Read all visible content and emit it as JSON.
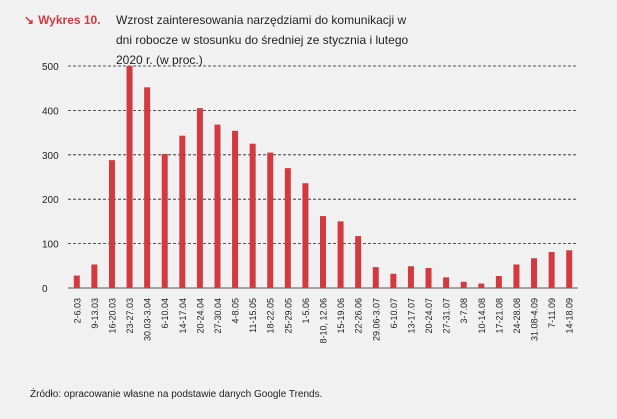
{
  "header": {
    "label": "Wykres 10.",
    "arrow": "↘",
    "title": "Wzrost zainteresowania narzędziami do komunikacji w dni robocze w stosunku do średniej ze stycznia i lutego 2020 r. (w proc.)"
  },
  "source": "Źródło: opracowanie własne na podstawie danych Google Trends.",
  "colors": {
    "bar": "#d33a3f",
    "grid": "#222222",
    "background": "#f1f1f1"
  },
  "chart_data": {
    "type": "bar",
    "title": "Wzrost zainteresowania narzędziami do komunikacji w dni robocze w stosunku do średniej ze stycznia i lutego 2020 r. (w proc.)",
    "categories": [
      "2-6.03",
      "9-13.03",
      "16-20.03",
      "23-27.03",
      "30.03-3.04",
      "6-10.04",
      "14-17.04",
      "20-24.04",
      "27-30.04",
      "4-8.05",
      "11-15.05",
      "18-22.05",
      "25-29.05",
      "1-5.06",
      "8-10, 12.06",
      "15-19.06",
      "22-26.06",
      "29.06-3.07",
      "6-10.07",
      "13-17.07",
      "20-24.07",
      "27-31.07",
      "3-7.08",
      "10-14.08",
      "17-21.08",
      "24-28.08",
      "31.08-4.09",
      "7-11.09",
      "14-18.09"
    ],
    "values": [
      28,
      53,
      288,
      500,
      452,
      302,
      343,
      405,
      368,
      354,
      325,
      305,
      270,
      236,
      162,
      150,
      117,
      47,
      32,
      49,
      45,
      24,
      14,
      10,
      27,
      53,
      67,
      81,
      85
    ],
    "ylim": [
      0,
      500
    ],
    "yticks": [
      0,
      100,
      200,
      300,
      400,
      500
    ],
    "xlabel": "",
    "ylabel": "",
    "grid": "horizontal dashed"
  }
}
